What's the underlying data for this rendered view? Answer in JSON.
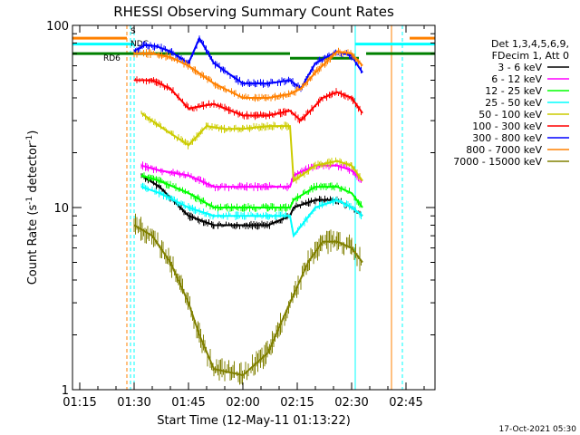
{
  "chart_data": {
    "type": "line",
    "title": "RHESSI Observing Summary Count Rates",
    "xlabel": "Start Time (12-May-11 01:13:22)",
    "ylabel_main": "Count Rate (s",
    "ylabel_sup1": "-1",
    "ylabel_mid": " detector",
    "ylabel_sup2": "-1",
    "ylabel_end": ")",
    "yscale": "log",
    "xlim": [
      "01:13",
      "02:53"
    ],
    "ylim": [
      1,
      100
    ],
    "x_ticks": [
      "01:15",
      "01:30",
      "01:45",
      "02:00",
      "02:15",
      "02:30",
      "02:45"
    ],
    "y_ticks": [
      "1",
      "10",
      "100"
    ],
    "legend_header": [
      "Det 1,3,4,5,6,9,",
      "FDecim 1, Att 0"
    ],
    "series": [
      {
        "name": "3 - 6 keV",
        "color": "#000000",
        "x": [
          "01:32",
          "01:37",
          "01:45",
          "01:52",
          "02:00",
          "02:07",
          "02:13",
          "02:14",
          "02:20",
          "02:26",
          "02:30",
          "02:33"
        ],
        "y": [
          15,
          13,
          9,
          8,
          8,
          8,
          9,
          10,
          11,
          11,
          10,
          9
        ]
      },
      {
        "name": "6 - 12 keV",
        "color": "#ff00ff",
        "x": [
          "01:32",
          "01:37",
          "01:45",
          "01:52",
          "02:00",
          "02:07",
          "02:13",
          "02:14",
          "02:20",
          "02:26",
          "02:30",
          "02:33"
        ],
        "y": [
          17,
          16,
          15,
          13,
          13,
          13,
          13,
          15,
          17,
          17,
          16,
          14
        ]
      },
      {
        "name": "12 - 25 keV",
        "color": "#00ff00",
        "x": [
          "01:32",
          "01:37",
          "01:45",
          "01:52",
          "02:00",
          "02:07",
          "02:13",
          "02:14",
          "02:20",
          "02:26",
          "02:30",
          "02:33"
        ],
        "y": [
          15,
          14,
          12,
          10,
          10,
          10,
          10,
          11,
          13,
          13,
          12,
          10
        ]
      },
      {
        "name": "25 - 50 keV",
        "color": "#00ffff",
        "x": [
          "01:32",
          "01:37",
          "01:45",
          "01:52",
          "02:00",
          "02:07",
          "02:13",
          "02:14",
          "02:20",
          "02:26",
          "02:30",
          "02:33"
        ],
        "y": [
          13,
          12,
          10,
          9,
          9,
          9,
          9,
          7,
          10,
          11,
          10,
          9
        ]
      },
      {
        "name": "50 - 100 keV",
        "color": "#cccc00",
        "x": [
          "01:32",
          "01:37",
          "01:45",
          "01:50",
          "01:55",
          "02:00",
          "02:07",
          "02:13",
          "02:14",
          "02:20",
          "02:26",
          "02:30",
          "02:33"
        ],
        "y": [
          33,
          28,
          22,
          28,
          27,
          27,
          28,
          28,
          14,
          17,
          18,
          17,
          14
        ]
      },
      {
        "name": "100 - 300 keV",
        "color": "#ff0000",
        "x": [
          "01:30",
          "01:35",
          "01:40",
          "01:45",
          "01:52",
          "02:00",
          "02:07",
          "02:13",
          "02:16",
          "02:22",
          "02:26",
          "02:30",
          "02:33"
        ],
        "y": [
          50,
          50,
          45,
          35,
          37,
          32,
          32,
          34,
          30,
          40,
          43,
          40,
          33
        ]
      },
      {
        "name": "300 - 800 keV",
        "color": "#0000ff",
        "x": [
          "01:30",
          "01:33",
          "01:36",
          "01:40",
          "01:45",
          "01:48",
          "01:52",
          "02:00",
          "02:07",
          "02:13",
          "02:16",
          "02:20",
          "02:26",
          "02:30",
          "02:33"
        ],
        "y": [
          72,
          78,
          77,
          72,
          62,
          85,
          62,
          48,
          48,
          50,
          45,
          62,
          72,
          68,
          55
        ]
      },
      {
        "name": "800 - 7000 keV",
        "color": "#ff8000",
        "x": [
          "01:30",
          "01:35",
          "01:40",
          "01:45",
          "01:52",
          "02:00",
          "02:07",
          "02:13",
          "02:16",
          "02:20",
          "02:26",
          "02:30",
          "02:33"
        ],
        "y": [
          70,
          70,
          67,
          60,
          48,
          40,
          40,
          42,
          45,
          55,
          72,
          70,
          60
        ]
      },
      {
        "name": "7000 - 15000 keV",
        "color": "#808000",
        "x": [
          "01:30",
          "01:35",
          "01:40",
          "01:45",
          "01:48",
          "01:52",
          "02:00",
          "02:07",
          "02:10",
          "02:13",
          "02:18",
          "02:22",
          "02:26",
          "02:30",
          "02:33"
        ],
        "y": [
          8,
          7,
          5,
          3,
          2,
          1.3,
          1.2,
          1.6,
          2.2,
          3,
          5,
          6.5,
          6.5,
          6,
          5
        ]
      }
    ],
    "annotations": [
      {
        "text": "RD6",
        "color": "#008000"
      },
      {
        "text": "S",
        "color": "#ff8000"
      },
      {
        "text": "NDC",
        "color": "#008000"
      }
    ],
    "timestamp": "17-Oct-2021 05:30"
  }
}
